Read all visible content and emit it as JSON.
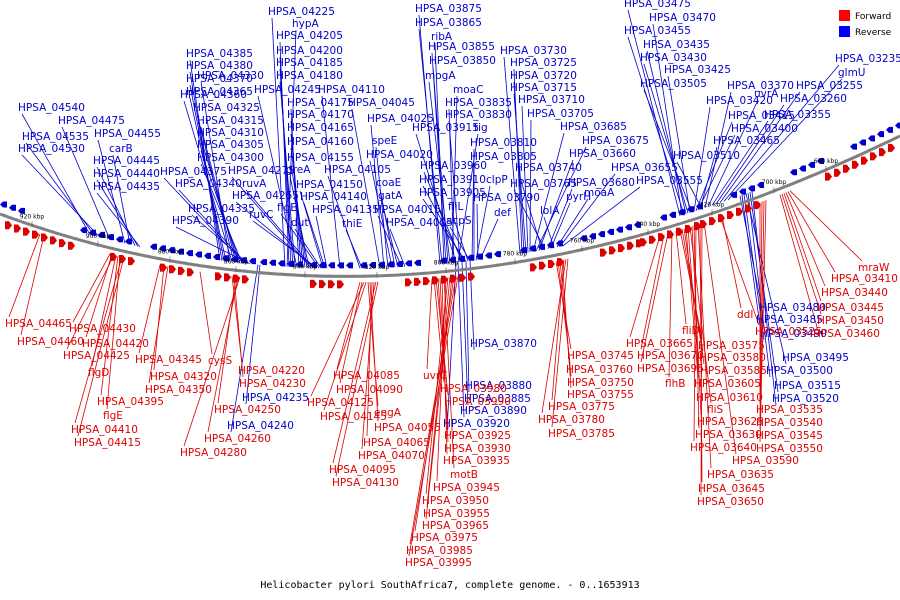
{
  "caption": "Helicobacter pylori SouthAfrica7, complete genome. - 0..1653913",
  "legend": {
    "items": [
      {
        "label": "Forward",
        "color": "#ff0000"
      },
      {
        "label": "Reverse",
        "color": "#0000ff"
      }
    ]
  },
  "colors": {
    "forward": "#dd0000",
    "reverse": "#0000cc",
    "backbone": "#808080"
  },
  "ticks": [
    "920 kbp",
    "900 kbp",
    "880 kbp",
    "860 kbp",
    "840 kbp",
    "820 kbp",
    "800 kbp",
    "780 kbp",
    "760 kbp",
    "740 kbp",
    "720 kbp",
    "700 kbp",
    "680 kbp"
  ],
  "reverse_labels": [
    "HPSA_04540",
    "HPSA_04475",
    "HPSA_04535",
    "HPSA_04455",
    "HPSA_04530",
    "carB",
    "HPSA_04445",
    "HPSA_04440",
    "HPSA_04435",
    "HPSA_04385",
    "HPSA_04380",
    "HPSA_04370",
    "HPSA_04365",
    "HPSA_04330",
    "HPSA_04360",
    "HPSA_04325",
    "HPSA_04315",
    "HPSA_04310",
    "HPSA_04305",
    "HPSA_04300",
    "HPSA_04375",
    "HPSA_04340",
    "HPSA_04335",
    "HPSA_04390",
    "HPSA_04225",
    "hypA",
    "HPSA_04205",
    "HPSA_04200",
    "HPSA_04185",
    "HPSA_04180",
    "HPSA_04245",
    "HPSA_04110",
    "HPSA_04175",
    "HPSA_04170",
    "HPSA_04165",
    "HPSA_04160",
    "HPSA_04155",
    "greA",
    "HPSA_04275",
    "ruvA",
    "HPSA_04265",
    "ruvC",
    "flgE",
    "dut",
    "HPSA_04150",
    "HPSA_04140",
    "HPSA_04135",
    "HPSA_04105",
    "thiE",
    "HPSA_04045",
    "HPSA_04025",
    "speE",
    "HPSA_04020",
    "coaE",
    "gatA",
    "HPSA_04015",
    "HPSA_04005",
    "HPSA_03875",
    "HPSA_03865",
    "ribA",
    "HPSA_03855",
    "HPSA_03850",
    "mogA",
    "moaC",
    "HPSA_03835",
    "HPSA_03915",
    "tig",
    "HPSA_03830",
    "HPSA_03960",
    "HPSA_03910",
    "HPSA_03905",
    "fliL",
    "acpS",
    "HPSA_03810",
    "HPSA_03805",
    "clpP",
    "HPSA_03790",
    "def",
    "HPSA_03730",
    "HPSA_03725",
    "HPSA_03720",
    "HPSA_03715",
    "HPSA_03710",
    "HPSA_03705",
    "HPSA_03685",
    "HPSA_03675",
    "HPSA_03660",
    "HPSA_03740",
    "HPSA_03765",
    "HPSA_03680",
    "pyrH",
    "lolA",
    "moaA",
    "HPSA_03655",
    "HPSA_03555",
    "HPSA_03475",
    "HPSA_03470",
    "HPSA_03455",
    "HPSA_03435",
    "HPSA_03430",
    "HPSA_03425",
    "HPSA_03505",
    "HPSA_03420",
    "HPSA_03415",
    "HPSA_03400",
    "HPSA_03465",
    "HPSA_03510",
    "HPSA_03370",
    "uvrA",
    "HPSA_03355",
    "HPSA_03260",
    "HPSA_03255",
    "HPSA_03235",
    "glmU",
    "HPSA_03870",
    "HPSA_03880",
    "HPSA_03885",
    "HPSA_03890",
    "HPSA_03920",
    "HPSA_04235",
    "HPSA_04240",
    "HPSA_03480",
    "HPSA_03485",
    "HPSA_03490",
    "HPSA_03495",
    "HPSA_03500",
    "HPSA_03515",
    "HPSA_03520"
  ],
  "forward_labels": [
    "HPSA_04465",
    "HPSA_04460",
    "HPSA_04430",
    "HPSA_04420",
    "HPSA_04425",
    "flgD",
    "HPSA_04395",
    "flgE",
    "HPSA_04410",
    "HPSA_04415",
    "HPSA_04345",
    "HPSA_04320",
    "HPSA_04350",
    "cysS",
    "HPSA_04220",
    "HPSA_04230",
    "HPSA_04250",
    "HPSA_04260",
    "HPSA_04280",
    "HPSA_04085",
    "HPSA_04090",
    "HPSA_04125",
    "HPSA_04145",
    "engA",
    "HPSA_04055",
    "HPSA_04065",
    "HPSA_04070",
    "HPSA_04095",
    "HPSA_04130",
    "uvrC",
    "HPSA_03980",
    "HPSA_03990",
    "HPSA_03925",
    "HPSA_03930",
    "HPSA_03935",
    "motB",
    "HPSA_03945",
    "HPSA_03950",
    "HPSA_03955",
    "HPSA_03965",
    "HPSA_03975",
    "HPSA_03985",
    "HPSA_03995",
    "HPSA_03745",
    "HPSA_03760",
    "HPSA_03750",
    "HPSA_03755",
    "HPSA_03775",
    "HPSA_03780",
    "HPSA_03785",
    "HPSA_03665",
    "HPSA_03670",
    "HPSA_03695",
    "flhB",
    "fliD",
    "HPSA_03575",
    "HPSA_03580",
    "HPSA_03585",
    "HPSA_03605",
    "HPSA_03610",
    "fliS",
    "HPSA_03625",
    "HPSA_03630",
    "HPSA_03640",
    "HPSA_03635",
    "HPSA_03645",
    "HPSA_03650",
    "HPSA_03590",
    "HPSA_03525",
    "ddl",
    "HPSA_03535",
    "HPSA_03540",
    "HPSA_03545",
    "HPSA_03550",
    "HPSA_03460",
    "HPSA_03450",
    "HPSA_03445",
    "HPSA_03440",
    "HPSA_03410",
    "mraW"
  ]
}
